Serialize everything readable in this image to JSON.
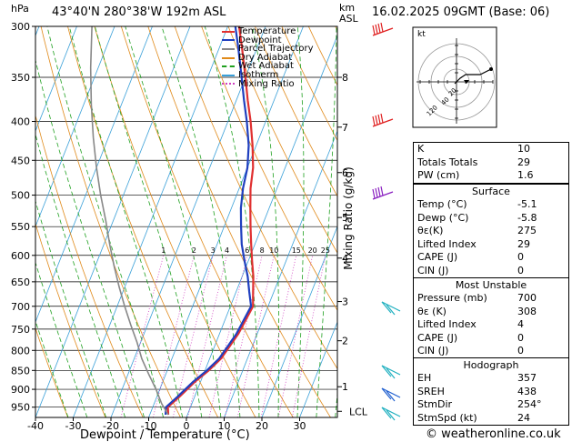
{
  "header": {
    "pressure_unit": "hPa",
    "location": "43°40'N  280°38'W  192m  ASL",
    "height_unit": "km",
    "height_unit2": "ASL",
    "datetime": "16.02.2025  09GMT  (Base: 06)"
  },
  "copyright": "© weatheronline.co.uk",
  "chart_data": {
    "type": "line",
    "xlabel": "Dewpoint / Temperature (°C)",
    "ylabel": "Mixing Ratio (g/kg)",
    "x_ticks": [
      -40,
      -30,
      -20,
      -10,
      0,
      10,
      20,
      30
    ],
    "y_ticks": [
      300,
      350,
      400,
      450,
      500,
      550,
      600,
      650,
      700,
      750,
      800,
      850,
      900,
      950
    ],
    "xlim": [
      -40,
      40
    ],
    "ylim": [
      300,
      980
    ],
    "km_ticks": [
      {
        "label": "8",
        "p": 350
      },
      {
        "label": "7",
        "p": 407
      },
      {
        "label": "6",
        "p": 467
      },
      {
        "label": "5",
        "p": 535
      },
      {
        "label": "4",
        "p": 605
      },
      {
        "label": "3",
        "p": 690
      },
      {
        "label": "2",
        "p": 777
      },
      {
        "label": "1",
        "p": 893
      },
      {
        "label": "LCL",
        "p": 962
      }
    ],
    "mixing_ratio_labels": [
      "1",
      "2",
      "3",
      "4",
      "6",
      "8",
      "10",
      "15",
      "20",
      "25"
    ],
    "legend": [
      "Temperature",
      "Dewpoint",
      "Parcel Trajectory",
      "Dry Adiabat",
      "Wet Adiabat",
      "Isotherm",
      "Mixing Ratio"
    ],
    "legend_placement": "top-left inside plot",
    "series": [
      {
        "name": "Temperature",
        "color": "#e03030",
        "points": [
          [
            -5.1,
            972
          ],
          [
            -6,
            950
          ],
          [
            -4,
            920
          ],
          [
            -1.5,
            880
          ],
          [
            1,
            850
          ],
          [
            3,
            820
          ],
          [
            4,
            790
          ],
          [
            5,
            760
          ],
          [
            5.5,
            730
          ],
          [
            6,
            700
          ],
          [
            4.5,
            670
          ],
          [
            3,
            640
          ],
          [
            1,
            610
          ],
          [
            -1,
            580
          ],
          [
            -3,
            550
          ],
          [
            -5,
            520
          ],
          [
            -7,
            490
          ],
          [
            -8.5,
            460
          ],
          [
            -11,
            430
          ],
          [
            -14,
            400
          ],
          [
            -17,
            375
          ],
          [
            -20,
            350
          ],
          [
            -24,
            320
          ],
          [
            -27,
            300
          ]
        ]
      },
      {
        "name": "Dewpoint",
        "color": "#1f3fbf",
        "points": [
          [
            -5.8,
            972
          ],
          [
            -6.5,
            950
          ],
          [
            -4.5,
            920
          ],
          [
            -2,
            880
          ],
          [
            0.5,
            850
          ],
          [
            2.5,
            820
          ],
          [
            3.5,
            790
          ],
          [
            4.5,
            760
          ],
          [
            5,
            730
          ],
          [
            5.5,
            700
          ],
          [
            3.5,
            670
          ],
          [
            1.5,
            640
          ],
          [
            -1,
            610
          ],
          [
            -3.5,
            580
          ],
          [
            -5.5,
            550
          ],
          [
            -7.5,
            520
          ],
          [
            -9,
            490
          ],
          [
            -10,
            460
          ],
          [
            -12,
            430
          ],
          [
            -15,
            400
          ],
          [
            -18,
            375
          ],
          [
            -21,
            350
          ],
          [
            -25,
            320
          ],
          [
            -28,
            300
          ]
        ]
      },
      {
        "name": "Parcel Trajectory",
        "color": "#888888",
        "points": [
          [
            -5.1,
            972
          ],
          [
            -8,
            940
          ],
          [
            -11,
            900
          ],
          [
            -14.5,
            860
          ],
          [
            -18,
            820
          ],
          [
            -21,
            780
          ],
          [
            -24.5,
            740
          ],
          [
            -28,
            700
          ],
          [
            -31.5,
            660
          ],
          [
            -35,
            620
          ],
          [
            -38.5,
            580
          ],
          [
            -42,
            540
          ],
          [
            -46,
            500
          ],
          [
            -50,
            460
          ],
          [
            -54,
            420
          ],
          [
            -58,
            380
          ],
          [
            -62,
            340
          ],
          [
            -66,
            300
          ]
        ]
      }
    ]
  },
  "hodograph": {
    "label": "kt",
    "ring_labels": [
      "20",
      "40",
      "60",
      "80",
      "120"
    ]
  },
  "indices": [
    {
      "label": "K",
      "value": "10"
    },
    {
      "label": "Totals Totals",
      "value": "29"
    },
    {
      "label": "PW (cm)",
      "value": "1.6"
    }
  ],
  "surface": {
    "title": "Surface",
    "rows": [
      {
        "label": "Temp (°C)",
        "value": "-5.1"
      },
      {
        "label": "Dewp (°C)",
        "value": "-5.8"
      },
      {
        "label": "θε(K)",
        "value": "275"
      },
      {
        "label": "Lifted Index",
        "value": "29"
      },
      {
        "label": "CAPE (J)",
        "value": "0"
      },
      {
        "label": "CIN (J)",
        "value": "0"
      }
    ]
  },
  "most_unstable": {
    "title": "Most Unstable",
    "rows": [
      {
        "label": "Pressure (mb)",
        "value": "700"
      },
      {
        "label": "θε (K)",
        "value": "308"
      },
      {
        "label": "Lifted Index",
        "value": "4"
      },
      {
        "label": "CAPE (J)",
        "value": "0"
      },
      {
        "label": "CIN (J)",
        "value": "0"
      }
    ]
  },
  "hodograph_table": {
    "title": "Hodograph",
    "rows": [
      {
        "label": "EH",
        "value": "357"
      },
      {
        "label": "SREH",
        "value": "438"
      },
      {
        "label": "StmDir",
        "value": "254°"
      },
      {
        "label": "StmSpd (kt)",
        "value": "24"
      }
    ]
  },
  "colors": {
    "temperature": "#e03030",
    "dewpoint": "#1f3fbf",
    "parcel": "#888888",
    "dry_adiabat": "#e08a1a",
    "wet_adiabat": "#1fa01f",
    "isotherm": "#3aa0d8",
    "mixing_ratio": "#d040c0"
  }
}
